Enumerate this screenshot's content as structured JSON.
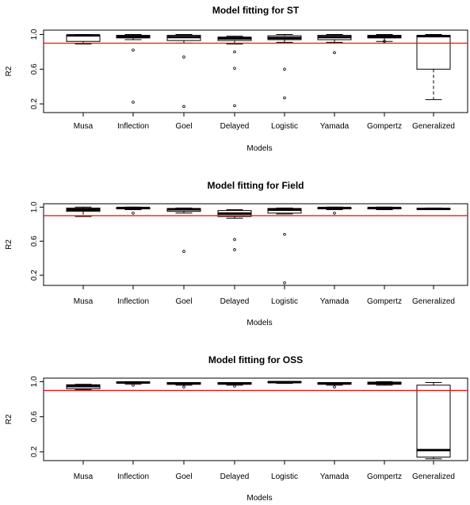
{
  "chart_data": [
    {
      "type": "boxplot",
      "title": "Model fitting for ST",
      "xlabel": "Models",
      "ylabel": "R2",
      "ylim": [
        0.1,
        1.05
      ],
      "yticks": [
        "0.2",
        "0.6",
        "1.0"
      ],
      "reference_line": 0.9,
      "reference_color": "#ff0000",
      "categories": [
        "Musa",
        "Inflection",
        "Goel",
        "Delayed",
        "Logistic",
        "Yamada",
        "Gompertz",
        "Generalized"
      ],
      "boxes": [
        {
          "min": 0.89,
          "q1": 0.92,
          "median": 0.99,
          "q3": 0.995,
          "max": 1.0,
          "outliers": []
        },
        {
          "min": 0.94,
          "q1": 0.96,
          "median": 0.975,
          "q3": 0.99,
          "max": 1.0,
          "outliers": [
            0.82,
            0.22
          ]
        },
        {
          "min": 0.9,
          "q1": 0.93,
          "median": 0.97,
          "q3": 0.99,
          "max": 1.0,
          "outliers": [
            0.74,
            0.17
          ]
        },
        {
          "min": 0.89,
          "q1": 0.93,
          "median": 0.955,
          "q3": 0.97,
          "max": 0.98,
          "outliers": [
            0.8,
            0.61,
            0.18
          ]
        },
        {
          "min": 0.91,
          "q1": 0.94,
          "median": 0.96,
          "q3": 0.985,
          "max": 1.0,
          "outliers": [
            0.6,
            0.27
          ]
        },
        {
          "min": 0.91,
          "q1": 0.94,
          "median": 0.97,
          "q3": 0.99,
          "max": 1.0,
          "outliers": [
            0.79
          ]
        },
        {
          "min": 0.92,
          "q1": 0.96,
          "median": 0.975,
          "q3": 0.99,
          "max": 1.0,
          "outliers": [
            0.92
          ]
        },
        {
          "min": 0.25,
          "q1": 0.6,
          "median": 0.98,
          "q3": 0.99,
          "max": 1.0,
          "outliers": []
        }
      ]
    },
    {
      "type": "boxplot",
      "title": "Model fitting for Field",
      "xlabel": "Models",
      "ylabel": "R2",
      "ylim": [
        0.08,
        1.04
      ],
      "yticks": [
        "0.2",
        "0.6",
        "1.0"
      ],
      "reference_line": 0.9,
      "reference_color": "#ff0000",
      "categories": [
        "Musa",
        "Inflection",
        "Goel",
        "Delayed",
        "Logistic",
        "Yamada",
        "Gompertz",
        "Generalized"
      ],
      "boxes": [
        {
          "min": 0.89,
          "q1": 0.95,
          "median": 0.97,
          "q3": 0.99,
          "max": 1.0,
          "outliers": []
        },
        {
          "min": 0.97,
          "q1": 0.98,
          "median": 0.99,
          "q3": 0.995,
          "max": 1.0,
          "outliers": [
            0.93
          ]
        },
        {
          "min": 0.93,
          "q1": 0.95,
          "median": 0.975,
          "q3": 0.985,
          "max": 0.99,
          "outliers": [
            0.48
          ]
        },
        {
          "min": 0.87,
          "q1": 0.89,
          "median": 0.925,
          "q3": 0.96,
          "max": 0.97,
          "outliers": [
            0.62,
            0.5
          ]
        },
        {
          "min": 0.92,
          "q1": 0.93,
          "median": 0.97,
          "q3": 0.985,
          "max": 0.99,
          "outliers": [
            0.68,
            0.11
          ]
        },
        {
          "min": 0.97,
          "q1": 0.98,
          "median": 0.99,
          "q3": 0.995,
          "max": 1.0,
          "outliers": [
            0.93
          ]
        },
        {
          "min": 0.97,
          "q1": 0.98,
          "median": 0.99,
          "q3": 0.995,
          "max": 1.0,
          "outliers": []
        },
        {
          "min": 0.97,
          "q1": 0.975,
          "median": 0.98,
          "q3": 0.985,
          "max": 0.99,
          "outliers": []
        }
      ]
    },
    {
      "type": "boxplot",
      "title": "Model fitting for OSS",
      "xlabel": "Models",
      "ylabel": "R2",
      "ylim": [
        0.1,
        1.04
      ],
      "yticks": [
        "0.2",
        "0.6",
        "1.0"
      ],
      "reference_line": 0.9,
      "reference_color": "#ff0000",
      "categories": [
        "Musa",
        "Inflection",
        "Goel",
        "Delayed",
        "Logistic",
        "Yamada",
        "Gompertz",
        "Generalized"
      ],
      "boxes": [
        {
          "min": 0.91,
          "q1": 0.92,
          "median": 0.95,
          "q3": 0.965,
          "max": 0.97,
          "outliers": []
        },
        {
          "min": 0.97,
          "q1": 0.985,
          "median": 0.99,
          "q3": 0.995,
          "max": 1.0,
          "outliers": [
            0.96
          ]
        },
        {
          "min": 0.96,
          "q1": 0.97,
          "median": 0.98,
          "q3": 0.99,
          "max": 0.99,
          "outliers": [
            0.94
          ]
        },
        {
          "min": 0.96,
          "q1": 0.97,
          "median": 0.98,
          "q3": 0.99,
          "max": 0.99,
          "outliers": [
            0.95
          ]
        },
        {
          "min": 0.98,
          "q1": 0.99,
          "median": 0.995,
          "q3": 1.0,
          "max": 1.0,
          "outliers": []
        },
        {
          "min": 0.96,
          "q1": 0.97,
          "median": 0.98,
          "q3": 0.99,
          "max": 0.99,
          "outliers": [
            0.94
          ]
        },
        {
          "min": 0.96,
          "q1": 0.97,
          "median": 0.985,
          "q3": 0.995,
          "max": 1.0,
          "outliers": []
        },
        {
          "min": 0.12,
          "q1": 0.14,
          "median": 0.22,
          "q3": 0.96,
          "max": 0.99,
          "outliers": []
        }
      ]
    }
  ]
}
